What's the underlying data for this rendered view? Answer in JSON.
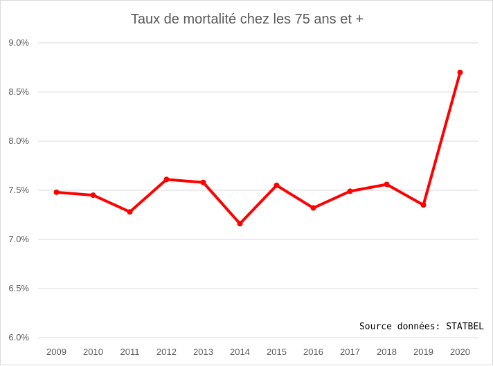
{
  "chart_data": {
    "type": "line",
    "title": "Taux de mortalité chez les 75 ans et +",
    "xlabel": "",
    "ylabel": "",
    "categories": [
      "2009",
      "2010",
      "2011",
      "2012",
      "2013",
      "2014",
      "2015",
      "2016",
      "2017",
      "2018",
      "2019",
      "2020"
    ],
    "series": [
      {
        "values": [
          7.48,
          7.45,
          7.28,
          7.61,
          7.58,
          7.16,
          7.55,
          7.32,
          7.49,
          7.56,
          7.35,
          8.7
        ]
      }
    ],
    "ylim": [
      6.0,
      9.0
    ],
    "yticks": [
      "6.0%",
      "6.5%",
      "7.0%",
      "7.5%",
      "8.0%",
      "8.5%",
      "9.0%"
    ],
    "ytick_values": [
      6.0,
      6.5,
      7.0,
      7.5,
      8.0,
      8.5,
      9.0
    ],
    "grid": true,
    "legend": "none",
    "annotation": "Source données: STATBEL",
    "line_color": "#ff0000",
    "grid_color": "#d9d9d9"
  }
}
